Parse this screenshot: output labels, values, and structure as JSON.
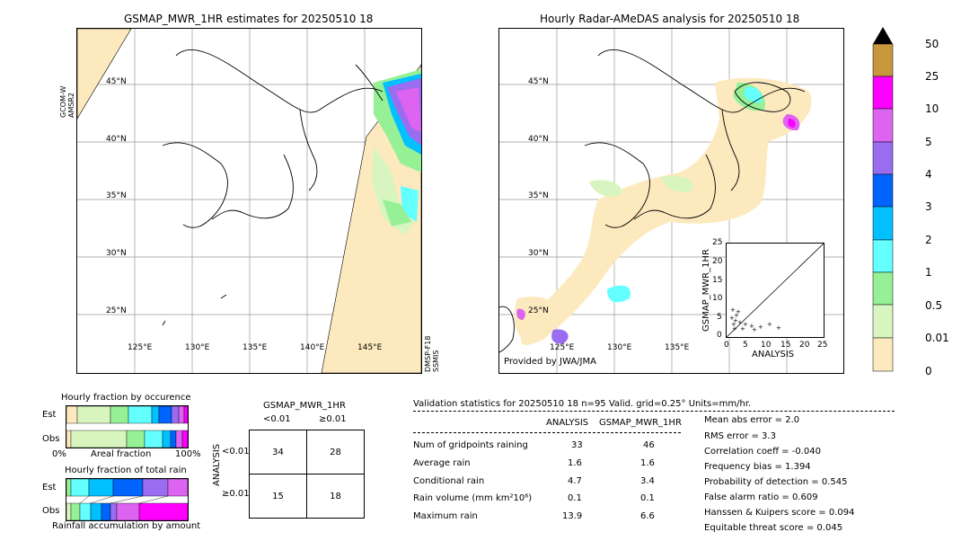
{
  "left_map": {
    "title": "GSMAP_MWR_1HR estimates for 20250510 18",
    "left_sensor_label": "GCOM-W\nAMSR2",
    "right_sensor_label": "DMSP-F18\nSSMIS",
    "lat_labels": [
      "45°N",
      "40°N",
      "35°N",
      "30°N",
      "25°N"
    ],
    "lon_labels": [
      "125°E",
      "130°E",
      "135°E",
      "140°E",
      "145°E"
    ]
  },
  "right_map": {
    "title": "Hourly Radar-AMeDAS analysis for 20250510 18",
    "credit": "Provided by JWA/JMA",
    "lat_labels": [
      "45°N",
      "40°N",
      "35°N",
      "30°N",
      "25°N"
    ],
    "lon_labels": [
      "125°E",
      "130°E",
      "135°E"
    ],
    "inset": {
      "ylabel": "GSMAP_MWR_1HR",
      "xlabel": "ANALYSIS",
      "ticks": [
        "0",
        "5",
        "10",
        "15",
        "20",
        "25"
      ]
    }
  },
  "colorbar": {
    "labels": [
      "50",
      "25",
      "10",
      "5",
      "4",
      "3",
      "2",
      "1",
      "0.5",
      "0.01",
      "0"
    ],
    "colors": [
      "#c8963c",
      "#ff00ff",
      "#dc64f0",
      "#9a6cf0",
      "#0064ff",
      "#00c0ff",
      "#64ffff",
      "#96f096",
      "#d8f5c0",
      "#fde9be"
    ]
  },
  "fraction_occurrence": {
    "title": "Hourly fraction by occurence",
    "row_labels": [
      "Est",
      "Obs"
    ],
    "axis_left": "0%",
    "axis_mid": "Areal fraction",
    "axis_right": "100%"
  },
  "fraction_total": {
    "title": "Hourly fraction of total rain",
    "row_labels": [
      "Est",
      "Obs"
    ],
    "axis_caption": "Rainfall accumulation by amount"
  },
  "contingency": {
    "title": "GSMAP_MWR_1HR",
    "col_labels": [
      "<0.01",
      "≥0.01"
    ],
    "side_label": "ANALYSIS",
    "row_labels": [
      "<0.01",
      "≥0.01"
    ],
    "cells": [
      [
        "34",
        "28"
      ],
      [
        "15",
        "18"
      ]
    ]
  },
  "validation": {
    "header": "Validation statistics for 20250510 18  n=95 Valid. grid=0.25° Units=mm/hr.",
    "col_analysis": "ANALYSIS",
    "col_gsmap": "GSMAP_MWR_1HR",
    "rows": [
      {
        "label": "Num of gridpoints raining",
        "analysis": "33",
        "gsmap": "46"
      },
      {
        "label": "Average rain",
        "analysis": "1.6",
        "gsmap": "1.6"
      },
      {
        "label": "Conditional rain",
        "analysis": "4.7",
        "gsmap": "3.4"
      },
      {
        "label": "Rain volume (mm km²10⁶)",
        "analysis": "0.1",
        "gsmap": "0.1"
      },
      {
        "label": "Maximum rain",
        "analysis": "13.9",
        "gsmap": "6.6"
      }
    ],
    "scores": [
      "Mean abs error =    2.0",
      "RMS error =    3.3",
      "Correlation coeff = -0.040",
      "Frequency bias =  1.394",
      "Probability of detection =  0.545",
      "False alarm ratio =  0.609",
      "Hanssen & Kuipers score =  0.094",
      "Equitable threat score =  0.045"
    ]
  }
}
